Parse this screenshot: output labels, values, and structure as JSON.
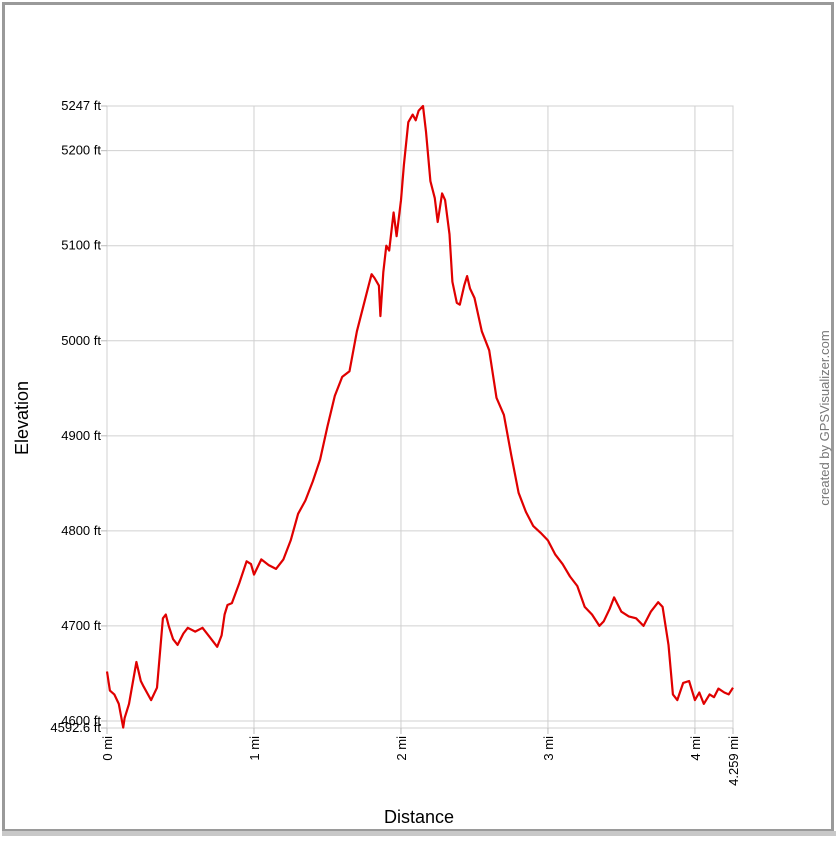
{
  "chart_data": {
    "type": "line",
    "title": "",
    "xlabel": "Distance",
    "ylabel": "Elevation",
    "xlim": [
      0,
      4.259
    ],
    "ylim": [
      4592.6,
      5247
    ],
    "grid": true,
    "x_ticks": [
      {
        "value": 0,
        "label": "0 mi"
      },
      {
        "value": 1,
        "label": "1 mi"
      },
      {
        "value": 2,
        "label": "2 mi"
      },
      {
        "value": 3,
        "label": "3 mi"
      },
      {
        "value": 4,
        "label": "4 mi"
      },
      {
        "value": 4.259,
        "label": "4.259 mi"
      }
    ],
    "y_ticks": [
      {
        "value": 4592.6,
        "label": "4592.6 ft"
      },
      {
        "value": 4600,
        "label": "4600 ft"
      },
      {
        "value": 4700,
        "label": "4700 ft"
      },
      {
        "value": 4800,
        "label": "4800 ft"
      },
      {
        "value": 4900,
        "label": "4900 ft"
      },
      {
        "value": 5000,
        "label": "5000 ft"
      },
      {
        "value": 5100,
        "label": "5100 ft"
      },
      {
        "value": 5200,
        "label": "5200 ft"
      },
      {
        "value": 5247,
        "label": "5247 ft"
      }
    ],
    "series": [
      {
        "color": "#e00000",
        "x": [
          0,
          0.02,
          0.05,
          0.08,
          0.11,
          0.12,
          0.15,
          0.2,
          0.23,
          0.25,
          0.3,
          0.34,
          0.38,
          0.4,
          0.42,
          0.45,
          0.48,
          0.52,
          0.55,
          0.6,
          0.65,
          0.7,
          0.75,
          0.78,
          0.8,
          0.82,
          0.85,
          0.9,
          0.95,
          0.98,
          1.0,
          1.05,
          1.1,
          1.15,
          1.2,
          1.25,
          1.3,
          1.35,
          1.4,
          1.45,
          1.5,
          1.55,
          1.6,
          1.65,
          1.7,
          1.75,
          1.78,
          1.8,
          1.82,
          1.85,
          1.86,
          1.88,
          1.9,
          1.92,
          1.95,
          1.97,
          2.0,
          2.02,
          2.05,
          2.08,
          2.1,
          2.12,
          2.15,
          2.17,
          2.2,
          2.23,
          2.25,
          2.28,
          2.3,
          2.33,
          2.35,
          2.38,
          2.4,
          2.43,
          2.45,
          2.47,
          2.5,
          2.55,
          2.6,
          2.65,
          2.7,
          2.75,
          2.8,
          2.85,
          2.9,
          2.95,
          3.0,
          3.05,
          3.1,
          3.15,
          3.2,
          3.25,
          3.3,
          3.35,
          3.38,
          3.42,
          3.45,
          3.5,
          3.55,
          3.6,
          3.65,
          3.7,
          3.75,
          3.78,
          3.82,
          3.85,
          3.88,
          3.92,
          3.96,
          4.0,
          4.03,
          4.06,
          4.1,
          4.13,
          4.16,
          4.2,
          4.23,
          4.259
        ],
        "y": [
          4652,
          4632,
          4628,
          4618,
          4593,
          4603,
          4618,
          4662,
          4642,
          4636,
          4622,
          4635,
          4708,
          4712,
          4700,
          4686,
          4680,
          4692,
          4698,
          4694,
          4698,
          4688,
          4678,
          4690,
          4712,
          4722,
          4724,
          4745,
          4768,
          4765,
          4754,
          4770,
          4764,
          4760,
          4770,
          4790,
          4818,
          4832,
          4852,
          4875,
          4910,
          4942,
          4962,
          4968,
          5010,
          5040,
          5058,
          5070,
          5066,
          5058,
          5026,
          5072,
          5100,
          5095,
          5135,
          5110,
          5148,
          5185,
          5230,
          5238,
          5232,
          5242,
          5247,
          5220,
          5168,
          5150,
          5125,
          5155,
          5148,
          5112,
          5062,
          5040,
          5038,
          5058,
          5068,
          5055,
          5045,
          5010,
          4990,
          4940,
          4922,
          4880,
          4840,
          4820,
          4805,
          4798,
          4790,
          4775,
          4765,
          4752,
          4742,
          4720,
          4712,
          4700,
          4705,
          4718,
          4730,
          4715,
          4710,
          4708,
          4700,
          4715,
          4725,
          4720,
          4680,
          4628,
          4622,
          4640,
          4642,
          4622,
          4630,
          4618,
          4628,
          4625,
          4634,
          4630,
          4628,
          4635
        ]
      }
    ]
  },
  "credit_text": "created by GPSVisualizer.com"
}
